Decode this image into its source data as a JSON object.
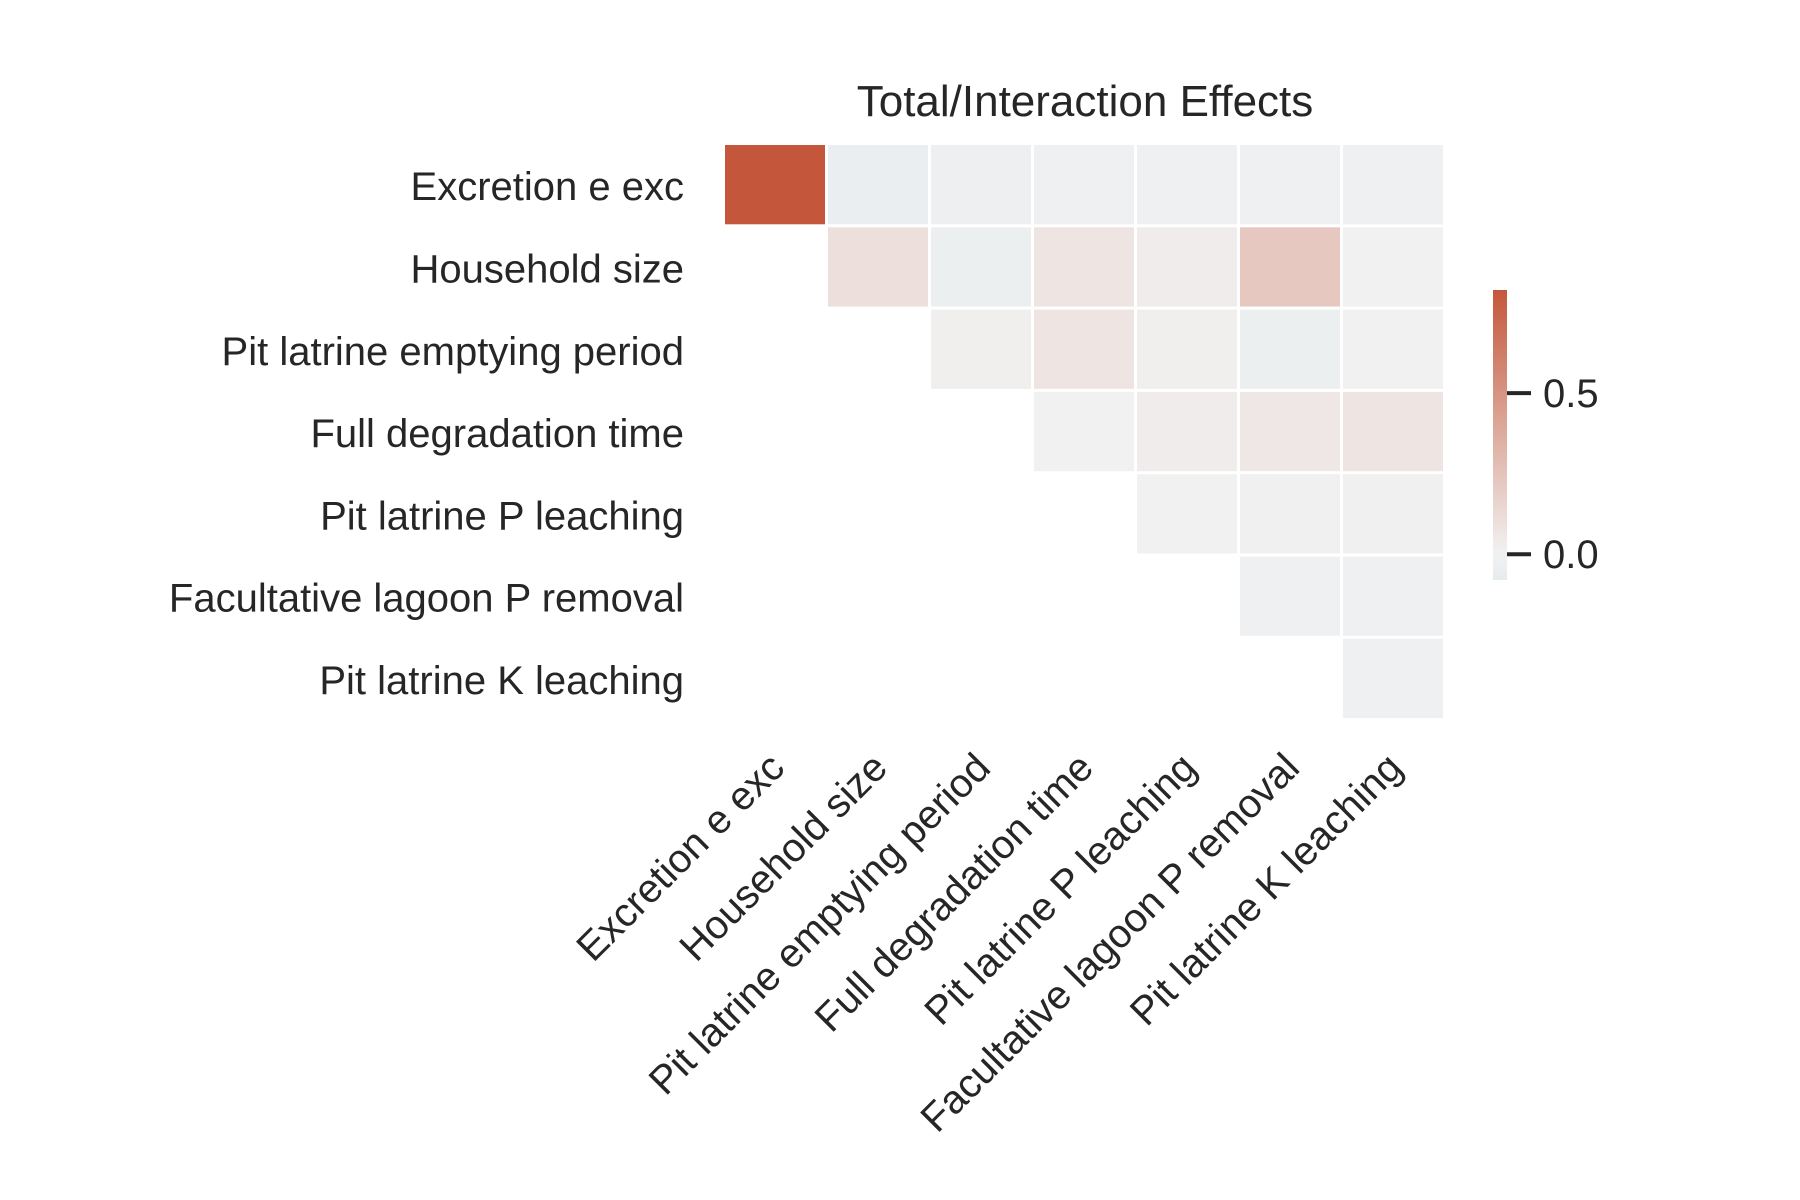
{
  "chart_data": {
    "type": "heatmap",
    "title": "Total/Interaction Effects",
    "row_labels": [
      "Excretion e exc",
      "Household size",
      "Pit latrine emptying period",
      "Full degradation time",
      "Pit latrine P leaching",
      "Facultative lagoon P removal",
      "Pit latrine K leaching"
    ],
    "col_labels": [
      "Excretion e exc",
      "Household size",
      "Pit latrine emptying period",
      "Full degradation time",
      "Pit latrine P leaching",
      "Facultative lagoon P removal",
      "Pit latrine K leaching"
    ],
    "values": [
      [
        0.82,
        -0.05,
        -0.03,
        -0.02,
        -0.02,
        -0.02,
        -0.02
      ],
      [
        null,
        0.1,
        -0.04,
        0.07,
        0.03,
        0.22,
        -0.01
      ],
      [
        null,
        null,
        0.02,
        0.07,
        0.02,
        -0.04,
        -0.01
      ],
      [
        null,
        null,
        null,
        -0.01,
        0.03,
        0.06,
        0.07
      ],
      [
        null,
        null,
        null,
        null,
        -0.01,
        0.01,
        0.01
      ],
      [
        null,
        null,
        null,
        null,
        null,
        -0.02,
        -0.02
      ],
      [
        null,
        null,
        null,
        null,
        null,
        null,
        -0.02
      ]
    ],
    "colorbar": {
      "vmin": -0.08,
      "vmax": 0.82,
      "ticks": [
        0.0,
        0.5
      ],
      "tick_labels": [
        "0.0",
        "0.5"
      ],
      "colormap": "diverging blue-red",
      "low_color": "#e6ebee",
      "mid_color": "#f2f2f2",
      "high_color": "#c4573b"
    }
  }
}
